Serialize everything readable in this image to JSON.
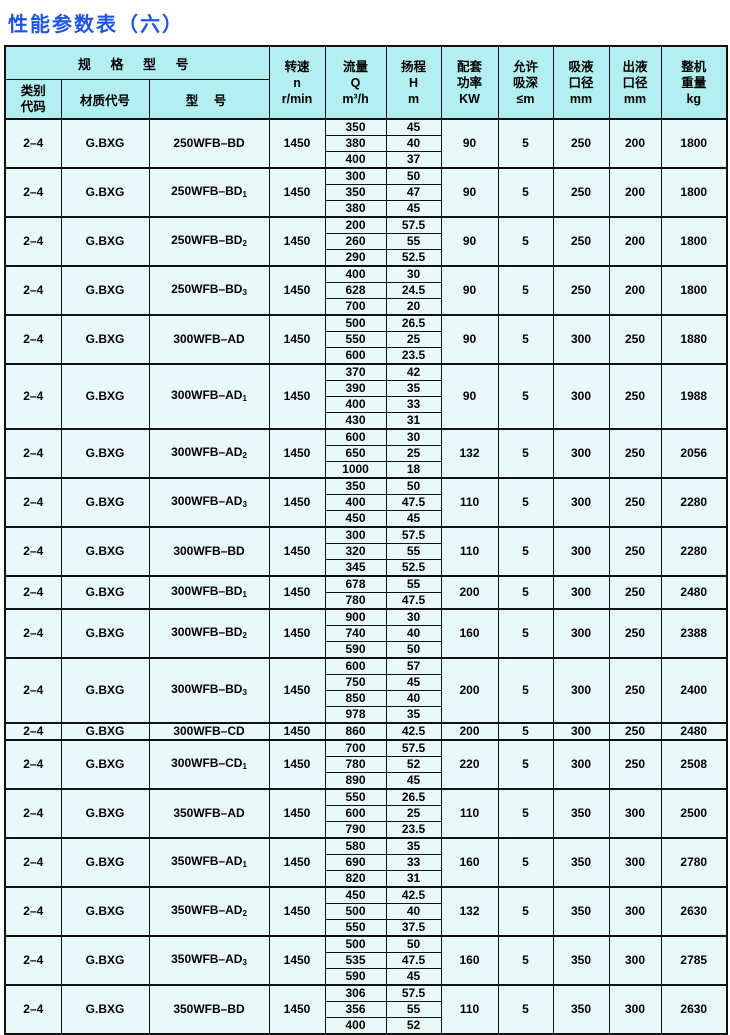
{
  "title": "性能参数表（六）",
  "colors": {
    "title_blue": "#1f55e6",
    "header_bg": "#b3eef0",
    "row_bg": "#e9f8f8",
    "border": "#111111"
  },
  "header": {
    "spec_group": "规 格 型 号",
    "class_code": [
      "类别",
      "代码"
    ],
    "material": "材质代号",
    "model": "型 号",
    "speed": [
      "转速",
      "n",
      "r/min"
    ],
    "flow": [
      "流量",
      "Q",
      "m³/h"
    ],
    "head": [
      "扬程",
      "H",
      "m"
    ],
    "power": [
      "配套",
      "功率",
      "KW"
    ],
    "suction_depth": [
      "允许",
      "吸深",
      "≤m"
    ],
    "inlet": [
      "吸液",
      "口径",
      "mm"
    ],
    "outlet": [
      "出液",
      "口径",
      "mm"
    ],
    "weight": [
      "整机",
      "重量",
      "kg"
    ]
  },
  "rows": [
    {
      "class_code": "2–4",
      "material": "G.BXG",
      "model": "250WFB–BD",
      "sub": "",
      "speed": "1450",
      "qh": [
        [
          "350",
          "45"
        ],
        [
          "380",
          "40"
        ],
        [
          "400",
          "37"
        ]
      ],
      "power": "90",
      "suction": "5",
      "inlet": "250",
      "outlet": "200",
      "weight": "1800"
    },
    {
      "class_code": "2–4",
      "material": "G.BXG",
      "model": "250WFB–BD",
      "sub": "1",
      "speed": "1450",
      "qh": [
        [
          "300",
          "50"
        ],
        [
          "350",
          "47"
        ],
        [
          "380",
          "45"
        ]
      ],
      "power": "90",
      "suction": "5",
      "inlet": "250",
      "outlet": "200",
      "weight": "1800"
    },
    {
      "class_code": "2–4",
      "material": "G.BXG",
      "model": "250WFB–BD",
      "sub": "2",
      "speed": "1450",
      "qh": [
        [
          "200",
          "57.5"
        ],
        [
          "260",
          "55"
        ],
        [
          "290",
          "52.5"
        ]
      ],
      "power": "90",
      "suction": "5",
      "inlet": "250",
      "outlet": "200",
      "weight": "1800"
    },
    {
      "class_code": "2–4",
      "material": "G.BXG",
      "model": "250WFB–BD",
      "sub": "3",
      "speed": "1450",
      "qh": [
        [
          "400",
          "30"
        ],
        [
          "628",
          "24.5"
        ],
        [
          "700",
          "20"
        ]
      ],
      "power": "90",
      "suction": "5",
      "inlet": "250",
      "outlet": "200",
      "weight": "1800"
    },
    {
      "class_code": "2–4",
      "material": "G.BXG",
      "model": "300WFB–AD",
      "sub": "",
      "speed": "1450",
      "qh": [
        [
          "500",
          "26.5"
        ],
        [
          "550",
          "25"
        ],
        [
          "600",
          "23.5"
        ]
      ],
      "power": "90",
      "suction": "5",
      "inlet": "300",
      "outlet": "250",
      "weight": "1880"
    },
    {
      "class_code": "2–4",
      "material": "G.BXG",
      "model": "300WFB–AD",
      "sub": "1",
      "speed": "1450",
      "qh": [
        [
          "370",
          "42"
        ],
        [
          "390",
          "35"
        ],
        [
          "400",
          "33"
        ],
        [
          "430",
          "31"
        ]
      ],
      "power": "90",
      "suction": "5",
      "inlet": "300",
      "outlet": "250",
      "weight": "1988"
    },
    {
      "class_code": "2–4",
      "material": "G.BXG",
      "model": "300WFB–AD",
      "sub": "2",
      "speed": "1450",
      "qh": [
        [
          "600",
          "30"
        ],
        [
          "650",
          "25"
        ],
        [
          "1000",
          "18"
        ]
      ],
      "power": "132",
      "suction": "5",
      "inlet": "300",
      "outlet": "250",
      "weight": "2056"
    },
    {
      "class_code": "2–4",
      "material": "G.BXG",
      "model": "300WFB–AD",
      "sub": "3",
      "speed": "1450",
      "qh": [
        [
          "350",
          "50"
        ],
        [
          "400",
          "47.5"
        ],
        [
          "450",
          "45"
        ]
      ],
      "power": "110",
      "suction": "5",
      "inlet": "300",
      "outlet": "250",
      "weight": "2280"
    },
    {
      "class_code": "2–4",
      "material": "G.BXG",
      "model": "300WFB–BD",
      "sub": "",
      "speed": "1450",
      "qh": [
        [
          "300",
          "57.5"
        ],
        [
          "320",
          "55"
        ],
        [
          "345",
          "52.5"
        ]
      ],
      "power": "110",
      "suction": "5",
      "inlet": "300",
      "outlet": "250",
      "weight": "2280"
    },
    {
      "class_code": "2–4",
      "material": "G.BXG",
      "model": "300WFB–BD",
      "sub": "1",
      "speed": "1450",
      "qh": [
        [
          "678",
          "55"
        ],
        [
          "780",
          "47.5"
        ]
      ],
      "power": "200",
      "suction": "5",
      "inlet": "300",
      "outlet": "250",
      "weight": "2480"
    },
    {
      "class_code": "2–4",
      "material": "G.BXG",
      "model": "300WFB–BD",
      "sub": "2",
      "speed": "1450",
      "qh": [
        [
          "900",
          "30"
        ],
        [
          "740",
          "40"
        ],
        [
          "590",
          "50"
        ]
      ],
      "power": "160",
      "suction": "5",
      "inlet": "300",
      "outlet": "250",
      "weight": "2388"
    },
    {
      "class_code": "2–4",
      "material": "G.BXG",
      "model": "300WFB–BD",
      "sub": "3",
      "speed": "1450",
      "qh": [
        [
          "600",
          "57"
        ],
        [
          "750",
          "45"
        ],
        [
          "850",
          "40"
        ],
        [
          "978",
          "35"
        ]
      ],
      "power": "200",
      "suction": "5",
      "inlet": "300",
      "outlet": "250",
      "weight": "2400"
    },
    {
      "class_code": "2–4",
      "material": "G.BXG",
      "model": "300WFB–CD",
      "sub": "",
      "speed": "1450",
      "qh": [
        [
          "860",
          "42.5"
        ]
      ],
      "power": "200",
      "suction": "5",
      "inlet": "300",
      "outlet": "250",
      "weight": "2480"
    },
    {
      "class_code": "2–4",
      "material": "G.BXG",
      "model": "300WFB–CD",
      "sub": "1",
      "speed": "1450",
      "qh": [
        [
          "700",
          "57.5"
        ],
        [
          "780",
          "52"
        ],
        [
          "890",
          "45"
        ]
      ],
      "power": "220",
      "suction": "5",
      "inlet": "300",
      "outlet": "250",
      "weight": "2508"
    },
    {
      "class_code": "2–4",
      "material": "G.BXG",
      "model": "350WFB–AD",
      "sub": "",
      "speed": "1450",
      "qh": [
        [
          "550",
          "26.5"
        ],
        [
          "600",
          "25"
        ],
        [
          "790",
          "23.5"
        ]
      ],
      "power": "110",
      "suction": "5",
      "inlet": "350",
      "outlet": "300",
      "weight": "2500"
    },
    {
      "class_code": "2–4",
      "material": "G.BXG",
      "model": "350WFB–AD",
      "sub": "1",
      "speed": "1450",
      "qh": [
        [
          "580",
          "35"
        ],
        [
          "690",
          "33"
        ],
        [
          "820",
          "31"
        ]
      ],
      "power": "160",
      "suction": "5",
      "inlet": "350",
      "outlet": "300",
      "weight": "2780"
    },
    {
      "class_code": "2–4",
      "material": "G.BXG",
      "model": "350WFB–AD",
      "sub": "2",
      "speed": "1450",
      "qh": [
        [
          "450",
          "42.5"
        ],
        [
          "500",
          "40"
        ],
        [
          "550",
          "37.5"
        ]
      ],
      "power": "132",
      "suction": "5",
      "inlet": "350",
      "outlet": "300",
      "weight": "2630"
    },
    {
      "class_code": "2–4",
      "material": "G.BXG",
      "model": "350WFB–AD",
      "sub": "3",
      "speed": "1450",
      "qh": [
        [
          "500",
          "50"
        ],
        [
          "535",
          "47.5"
        ],
        [
          "590",
          "45"
        ]
      ],
      "power": "160",
      "suction": "5",
      "inlet": "350",
      "outlet": "300",
      "weight": "2785"
    },
    {
      "class_code": "2–4",
      "material": "G.BXG",
      "model": "350WFB–BD",
      "sub": "",
      "speed": "1450",
      "qh": [
        [
          "306",
          "57.5"
        ],
        [
          "356",
          "55"
        ],
        [
          "400",
          "52"
        ]
      ],
      "power": "110",
      "suction": "5",
      "inlet": "350",
      "outlet": "300",
      "weight": "2630"
    }
  ]
}
